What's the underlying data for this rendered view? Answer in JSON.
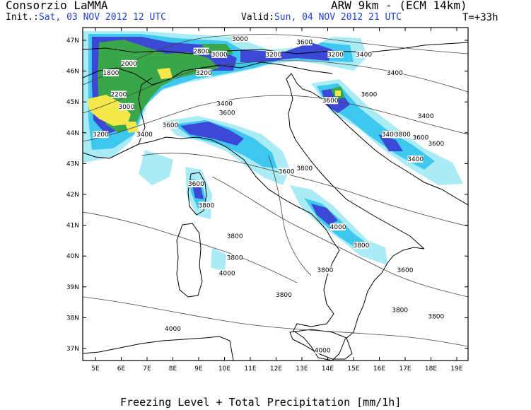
{
  "header": {
    "organization": "Consorzio LaMMA",
    "model": "ARW 9km - (ECM 14km)",
    "init_label": "Init.:",
    "init_value": "Sat, 03 NOV 2012  12 UTC",
    "valid_label": "Valid:",
    "valid_value": "Sun, 04 NOV 2012  21 UTC",
    "forecast_hour": "T=+33h"
  },
  "map": {
    "lat_ticks": [
      "47N",
      "46N",
      "45N",
      "44N",
      "43N",
      "42N",
      "41N",
      "40N",
      "39N",
      "38N",
      "37N"
    ],
    "lon_ticks": [
      "5E",
      "6E",
      "7E",
      "8E",
      "9E",
      "10E",
      "11E",
      "12E",
      "13E",
      "14E",
      "15E",
      "16E",
      "17E",
      "18E",
      "19E"
    ],
    "contour_labels": [
      {
        "text": "3200",
        "lon": 11.9,
        "lat": 47.4
      },
      {
        "text": "3000",
        "lon": 10.6,
        "lat": 47.0
      },
      {
        "text": "3600",
        "lon": 13.1,
        "lat": 46.9
      },
      {
        "text": "2800",
        "lon": 9.1,
        "lat": 46.6
      },
      {
        "text": "3000",
        "lon": 9.8,
        "lat": 46.5
      },
      {
        "text": "3200",
        "lon": 11.9,
        "lat": 46.5
      },
      {
        "text": "3200",
        "lon": 14.3,
        "lat": 46.5
      },
      {
        "text": "3400",
        "lon": 15.4,
        "lat": 46.5
      },
      {
        "text": "2000",
        "lon": 6.3,
        "lat": 46.2
      },
      {
        "text": "1800",
        "lon": 5.6,
        "lat": 45.9
      },
      {
        "text": "3200",
        "lon": 9.2,
        "lat": 45.9
      },
      {
        "text": "3400",
        "lon": 16.6,
        "lat": 45.9
      },
      {
        "text": "2200",
        "lon": 5.9,
        "lat": 45.2
      },
      {
        "text": "3600",
        "lon": 14.1,
        "lat": 45.0
      },
      {
        "text": "3600",
        "lon": 15.6,
        "lat": 45.2
      },
      {
        "text": "3000",
        "lon": 6.2,
        "lat": 44.8
      },
      {
        "text": "3400",
        "lon": 10.0,
        "lat": 44.9
      },
      {
        "text": "3600",
        "lon": 10.1,
        "lat": 44.6
      },
      {
        "text": "3400",
        "lon": 17.8,
        "lat": 44.5
      },
      {
        "text": "3600",
        "lon": 7.9,
        "lat": 44.2
      },
      {
        "text": "3200",
        "lon": 5.2,
        "lat": 43.9
      },
      {
        "text": "3400",
        "lon": 6.9,
        "lat": 43.9
      },
      {
        "text": "3400",
        "lon": 16.4,
        "lat": 43.9
      },
      {
        "text": "3800",
        "lon": 16.9,
        "lat": 43.9
      },
      {
        "text": "3600",
        "lon": 17.6,
        "lat": 43.8
      },
      {
        "text": "3600",
        "lon": 18.2,
        "lat": 43.6
      },
      {
        "text": "3400",
        "lon": 17.4,
        "lat": 43.1
      },
      {
        "text": "3600",
        "lon": 12.4,
        "lat": 42.7
      },
      {
        "text": "3800",
        "lon": 13.1,
        "lat": 42.8
      },
      {
        "text": "3600",
        "lon": 8.9,
        "lat": 42.3
      },
      {
        "text": "3800",
        "lon": 9.3,
        "lat": 41.6
      },
      {
        "text": "4000",
        "lon": 14.4,
        "lat": 40.9
      },
      {
        "text": "3800",
        "lon": 10.4,
        "lat": 40.6
      },
      {
        "text": "3800",
        "lon": 15.3,
        "lat": 40.3
      },
      {
        "text": "3800",
        "lon": 10.4,
        "lat": 39.9
      },
      {
        "text": "3800",
        "lon": 13.9,
        "lat": 39.5
      },
      {
        "text": "3600",
        "lon": 17.0,
        "lat": 39.5
      },
      {
        "text": "4000",
        "lon": 10.1,
        "lat": 39.4
      },
      {
        "text": "3800",
        "lon": 12.3,
        "lat": 38.7
      },
      {
        "text": "3800",
        "lon": 16.8,
        "lat": 38.2
      },
      {
        "text": "3800",
        "lon": 18.2,
        "lat": 38.0
      },
      {
        "text": "4000",
        "lon": 8.0,
        "lat": 37.6
      },
      {
        "text": "4000",
        "lon": 13.8,
        "lat": 36.9
      }
    ]
  },
  "caption": "Freezing Level + Total Precipitation [mm/1h]",
  "colors": {
    "light_cyan": "#a9ecf6",
    "cyan": "#3ec8f0",
    "blue": "#3c48d6",
    "green": "#3aa64a",
    "yellow": "#f4e84a",
    "header_blue": "#1f3fd8"
  }
}
